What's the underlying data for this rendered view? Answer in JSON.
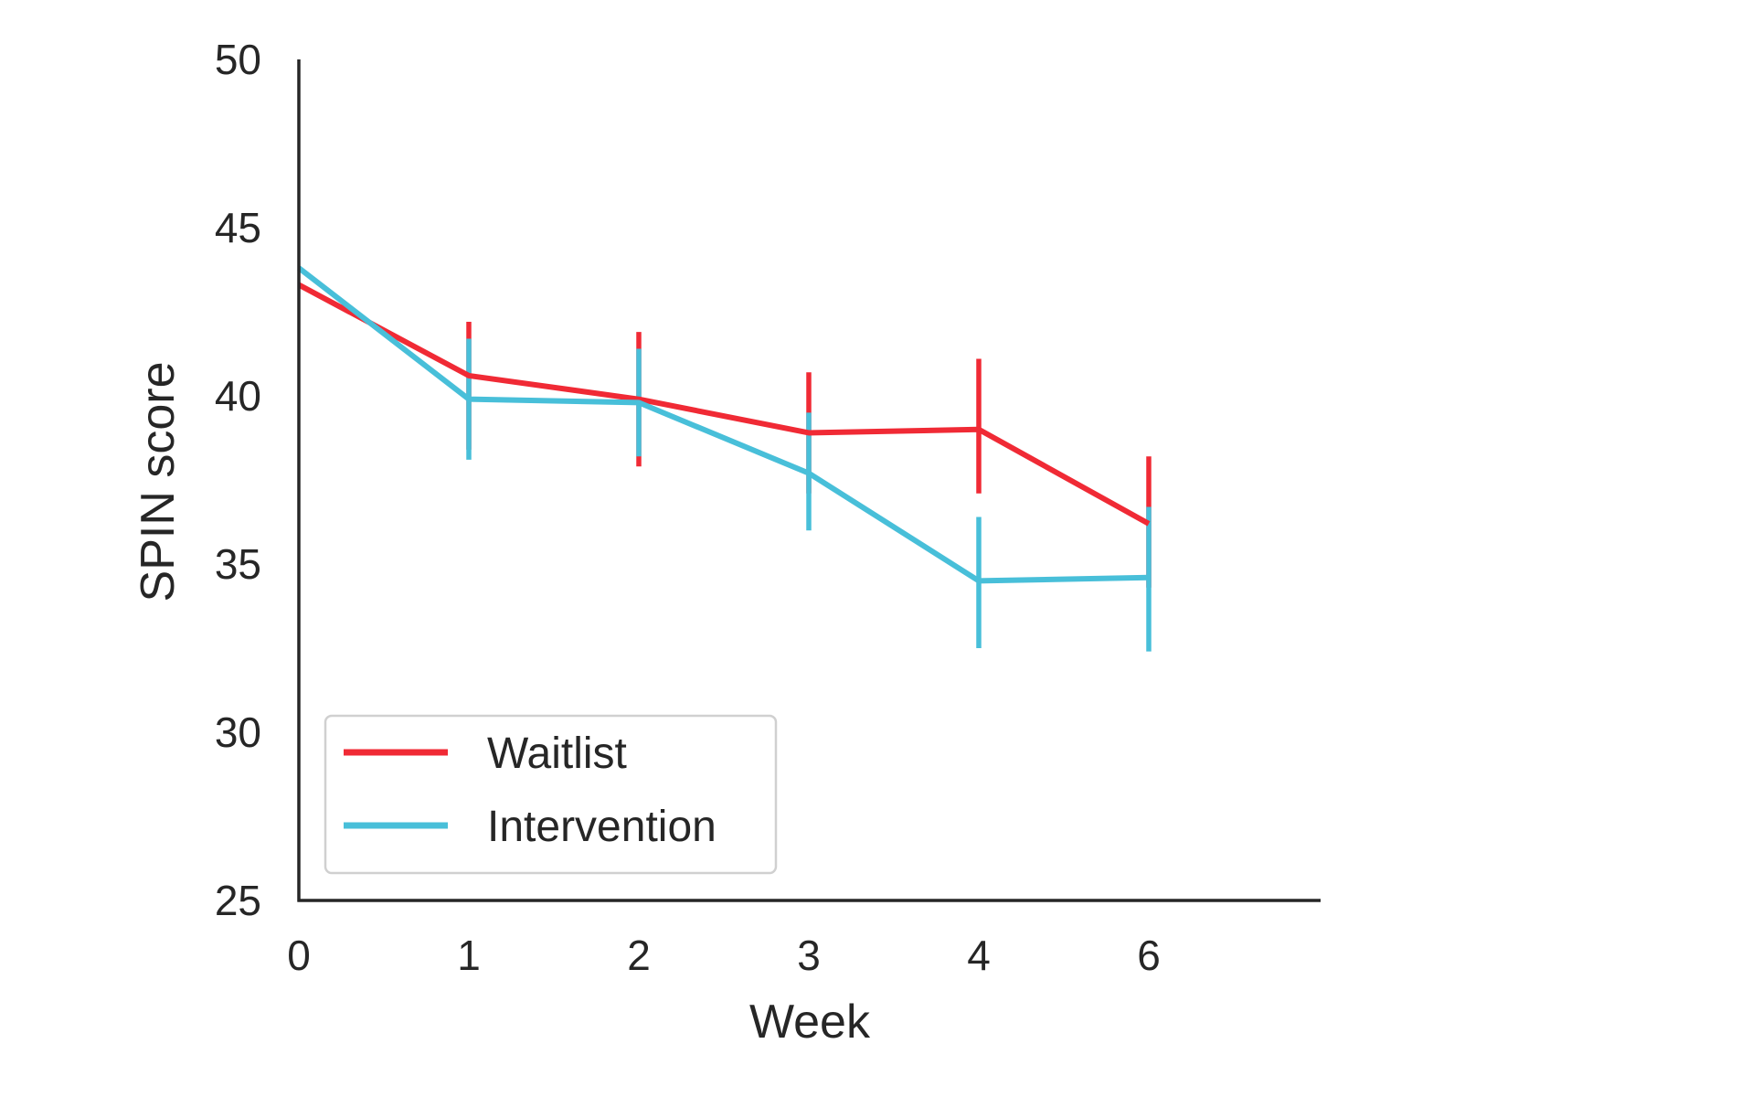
{
  "chart_data": {
    "type": "line",
    "title": "",
    "xlabel": "Week",
    "ylabel": "SPIN score",
    "x": [
      "0",
      "1",
      "2",
      "3",
      "4",
      "6"
    ],
    "ylim": [
      25,
      50
    ],
    "y_ticks": [
      "25",
      "30",
      "35",
      "40",
      "45",
      "50"
    ],
    "grid": false,
    "legend_position": "lower-left",
    "series": [
      {
        "name": "Waitlist",
        "color": "#f02a35",
        "values": [
          43.3,
          40.6,
          39.9,
          38.9,
          39.0,
          36.2
        ],
        "error_low": [
          null,
          38.4,
          37.9,
          37.1,
          37.1,
          34.3
        ],
        "error_high": [
          null,
          42.2,
          41.9,
          40.7,
          41.1,
          38.2
        ]
      },
      {
        "name": "Intervention",
        "color": "#48bfd9",
        "values": [
          43.8,
          39.9,
          39.8,
          37.7,
          34.5,
          34.6
        ],
        "error_low": [
          null,
          38.1,
          38.2,
          36.0,
          32.5,
          32.4
        ],
        "error_high": [
          null,
          41.7,
          41.4,
          39.5,
          36.4,
          36.7
        ]
      }
    ]
  }
}
